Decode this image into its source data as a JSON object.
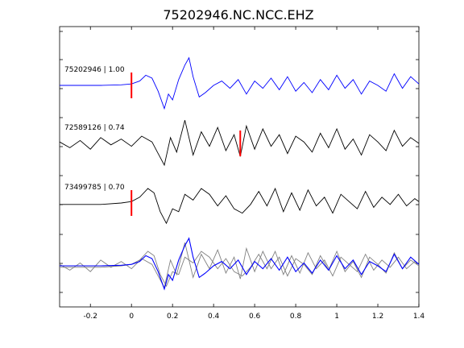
{
  "chart_data": {
    "type": "line",
    "title": "75202946.NC.NCC.EHZ",
    "xlabel": "",
    "ylabel": "",
    "xlim": [
      -0.35,
      1.4
    ],
    "xticks": [
      "-0.2",
      "0",
      "0.2",
      "0.4",
      "0.6",
      "0.8",
      "1",
      "1.2",
      "1.4"
    ],
    "xtick_values": [
      -0.2,
      0,
      0.2,
      0.4,
      0.6,
      0.8,
      1.0,
      1.2,
      1.4
    ],
    "grid": false,
    "legend": "none",
    "colors": {
      "primary": "#0000ff",
      "correlated": "#000000",
      "overlay": "#808080",
      "pick": "#ff0000"
    },
    "series": [
      {
        "label": "75202946 | 1.00",
        "color": "#0000ff",
        "pick_time": 0.0,
        "x": [
          -0.35,
          -0.25,
          -0.15,
          -0.05,
          0.0,
          0.04,
          0.07,
          0.1,
          0.13,
          0.16,
          0.18,
          0.2,
          0.23,
          0.26,
          0.28,
          0.3,
          0.33,
          0.36,
          0.4,
          0.44,
          0.48,
          0.52,
          0.56,
          0.6,
          0.64,
          0.68,
          0.72,
          0.76,
          0.8,
          0.84,
          0.88,
          0.92,
          0.96,
          1.0,
          1.04,
          1.08,
          1.12,
          1.16,
          1.2,
          1.24,
          1.28,
          1.32,
          1.36,
          1.4
        ],
        "y": [
          0,
          0,
          0,
          0.02,
          0.05,
          0.15,
          0.35,
          0.25,
          -0.2,
          -0.8,
          -0.3,
          -0.5,
          0.2,
          0.7,
          0.95,
          0.3,
          -0.4,
          -0.25,
          0,
          0.15,
          -0.1,
          0.2,
          -0.3,
          0.15,
          -0.1,
          0.25,
          -0.15,
          0.3,
          -0.2,
          0.1,
          -0.25,
          0.2,
          -0.15,
          0.35,
          -0.1,
          0.2,
          -0.3,
          0.15,
          0,
          -0.2,
          0.4,
          -0.1,
          0.3,
          0.05
        ]
      },
      {
        "label": "72589126 | 0.74",
        "color": "#000000",
        "pick_time": 0.53,
        "x": [
          -0.35,
          -0.3,
          -0.25,
          -0.2,
          -0.15,
          -0.1,
          -0.05,
          0.0,
          0.05,
          0.1,
          0.13,
          0.16,
          0.19,
          0.22,
          0.26,
          0.3,
          0.34,
          0.38,
          0.42,
          0.46,
          0.5,
          0.53,
          0.56,
          0.6,
          0.64,
          0.68,
          0.72,
          0.76,
          0.8,
          0.84,
          0.88,
          0.92,
          0.96,
          1.0,
          1.04,
          1.08,
          1.12,
          1.16,
          1.2,
          1.24,
          1.28,
          1.32,
          1.36,
          1.4
        ],
        "y": [
          0.05,
          -0.15,
          0.1,
          -0.2,
          0.2,
          -0.05,
          0.15,
          -0.1,
          0.25,
          0.05,
          -0.35,
          -0.75,
          0.2,
          -0.3,
          0.8,
          -0.4,
          0.4,
          -0.1,
          0.55,
          -0.25,
          0.3,
          -0.45,
          0.6,
          -0.2,
          0.5,
          -0.1,
          0.3,
          -0.35,
          0.25,
          0.05,
          -0.3,
          0.35,
          -0.15,
          0.5,
          -0.2,
          0.15,
          -0.4,
          0.3,
          0.05,
          -0.25,
          0.45,
          -0.1,
          0.2,
          0.0
        ]
      },
      {
        "label": "73499785 | 0.70",
        "color": "#000000",
        "pick_time": 0.0,
        "x": [
          -0.35,
          -0.25,
          -0.15,
          -0.05,
          0.0,
          0.04,
          0.08,
          0.11,
          0.14,
          0.17,
          0.2,
          0.23,
          0.26,
          0.3,
          0.34,
          0.38,
          0.42,
          0.46,
          0.5,
          0.54,
          0.58,
          0.62,
          0.66,
          0.7,
          0.74,
          0.78,
          0.82,
          0.86,
          0.9,
          0.94,
          0.98,
          1.02,
          1.06,
          1.1,
          1.14,
          1.18,
          1.22,
          1.26,
          1.3,
          1.34,
          1.38,
          1.4
        ],
        "y": [
          -0.05,
          -0.05,
          -0.05,
          0,
          0.05,
          0.2,
          0.5,
          0.35,
          -0.3,
          -0.7,
          -0.2,
          -0.3,
          0.3,
          0.1,
          0.5,
          0.3,
          -0.1,
          0.25,
          -0.2,
          -0.35,
          -0.05,
          0.4,
          -0.1,
          0.5,
          -0.3,
          0.35,
          -0.25,
          0.45,
          -0.1,
          0.2,
          -0.35,
          0.3,
          0.05,
          -0.2,
          0.4,
          -0.15,
          0.2,
          -0.05,
          0.3,
          -0.1,
          0.15,
          0.05
        ]
      }
    ]
  }
}
